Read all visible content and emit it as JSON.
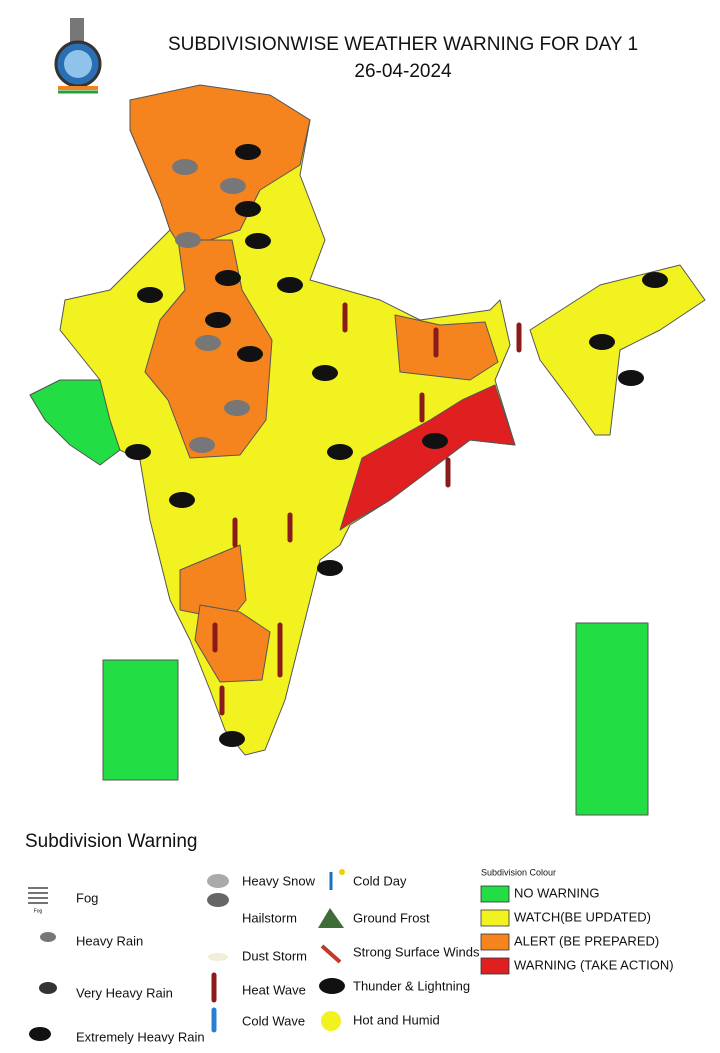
{
  "header": {
    "title": "SUBDIVISIONWISE WEATHER WARNING FOR DAY 1",
    "date": "26-04-2024"
  },
  "legend": {
    "title": "Subdivision Warning",
    "fog_icon_caption": "Fog",
    "icons": [
      {
        "label": "Fog"
      },
      {
        "label": "Heavy Rain"
      },
      {
        "label": "Very Heavy Rain"
      },
      {
        "label": "Extremely Heavy Rain"
      },
      {
        "label": "Heavy Snow"
      },
      {
        "label": "Hailstorm"
      },
      {
        "label": "Dust Storm"
      },
      {
        "label": "Heat Wave"
      },
      {
        "label": "Cold Wave"
      },
      {
        "label": "Cold Day"
      },
      {
        "label": "Ground Frost"
      },
      {
        "label": "Strong Surface Winds"
      },
      {
        "label": "Thunder & Lightning"
      },
      {
        "label": "Hot and Humid"
      }
    ],
    "colour_title": "Subdivision Colour",
    "colours": [
      {
        "label": "NO WARNING",
        "color": "#22dd44"
      },
      {
        "label": "WATCH(BE UPDATED)",
        "color": "#f2f220"
      },
      {
        "label": "ALERT (BE PREPARED)",
        "color": "#f5841f"
      },
      {
        "label": "WARNING (TAKE ACTION)",
        "color": "#e02020"
      }
    ]
  }
}
